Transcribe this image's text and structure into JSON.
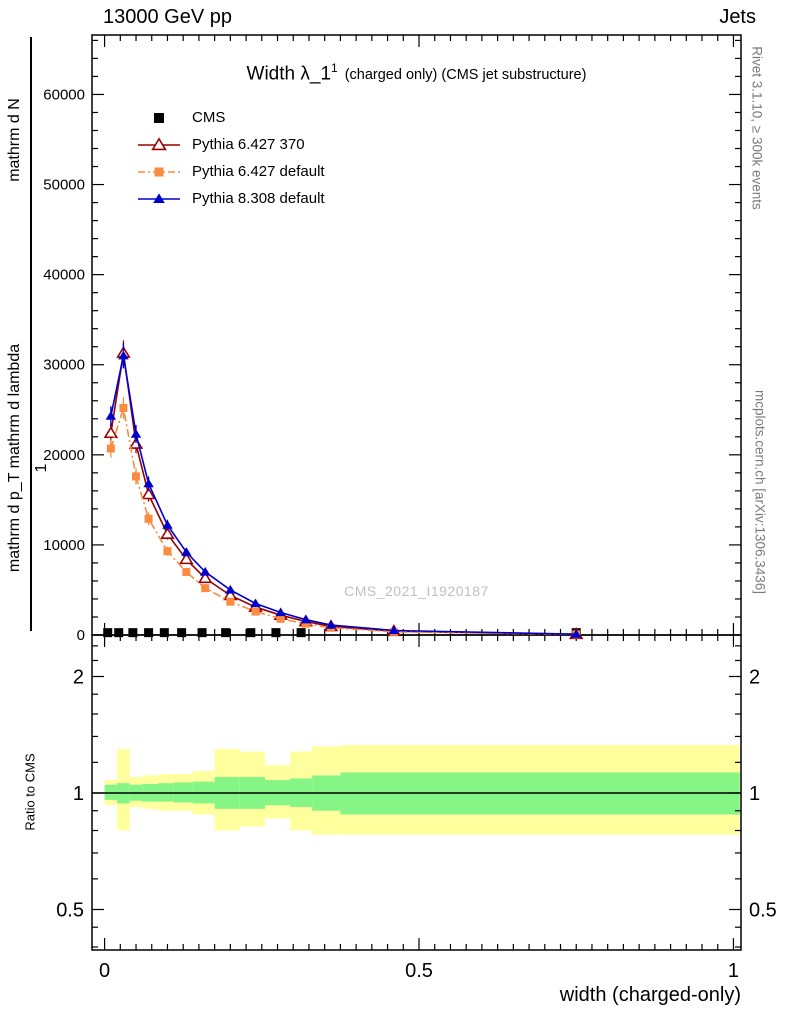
{
  "header": {
    "left": "13000 GeV pp",
    "right": "Jets"
  },
  "title": {
    "main": "Width λ_1",
    "sup": "1",
    "rest": "(charged only) (CMS jet substructure)"
  },
  "watermark": "CMS_2021_I1920187",
  "side_labels": {
    "rivet": "Rivet 3.1.10, ≥ 300k events",
    "mcplots": "mcplots.cern.ch [arXiv:1306.3436]"
  },
  "axis_labels": {
    "y_numerator": "mathrm d N",
    "y_denominator": "mathrm d p_T mathrm d lambda",
    "y_prefix": "1",
    "ratio": "Ratio to CMS",
    "x": "width (charged-only)"
  },
  "chart_data": {
    "type": "line",
    "title": "Width λ_1^1 (charged only) (CMS jet substructure)",
    "xlabel": "width (charged-only)",
    "ylabel": "mathrm d N / mathrm d p_T mathrm d lambda",
    "ratio_label": "Ratio to CMS",
    "xlim": [
      -0.02,
      1.012
    ],
    "ylim": [
      0,
      66600
    ],
    "ratio_ylim": [
      0.39,
      2.56
    ],
    "ratio_scale": "log",
    "grid": false,
    "legend_position": "top-left",
    "xticks": {
      "major": [
        0,
        0.5,
        1
      ],
      "labels": [
        "0",
        "0.5",
        "1"
      ],
      "minor_step": 0.025
    },
    "yticks": {
      "major": [
        0,
        10000,
        20000,
        30000,
        40000,
        50000,
        60000
      ],
      "minor_step": 2000
    },
    "ratio_yticks": {
      "major": [
        0.5,
        1,
        2
      ],
      "labels": [
        "0.5",
        "1",
        "2"
      ],
      "minor": [
        0.4,
        0.45,
        0.6,
        0.7,
        0.8,
        0.9,
        1.2,
        1.4,
        1.6,
        1.8,
        2.2,
        2.4
      ]
    },
    "band_colors": {
      "yellow": "#ffff9e",
      "green": "#85f585"
    },
    "ratio_line": 1,
    "series": [
      {
        "label": "CMS",
        "color": "#000000",
        "line": "none",
        "marker": "square-filled",
        "msize": 9,
        "x": [
          0.005,
          0.0225,
          0.045,
          0.07,
          0.095,
          0.1225,
          0.155,
          0.1925,
          0.2325,
          0.2725,
          0.3125,
          0.75
        ],
        "y": [
          260,
          260,
          260,
          260,
          260,
          260,
          260,
          260,
          260,
          260,
          260,
          260
        ]
      },
      {
        "label": "Pythia 6.427 370",
        "color": "#990000",
        "line": "solid",
        "marker": "triangle-open",
        "msize": 10,
        "x": [
          0.01,
          0.03,
          0.05,
          0.07,
          0.1,
          0.13,
          0.16,
          0.2,
          0.24,
          0.28,
          0.32,
          0.36,
          0.46,
          0.75
        ],
        "y": [
          22400,
          31300,
          21200,
          15600,
          11200,
          8400,
          6300,
          4400,
          3100,
          2200,
          1500,
          950,
          420,
          80
        ],
        "yerr": [
          1100,
          1400,
          1000,
          800,
          600,
          450,
          340,
          250,
          180,
          130,
          90,
          60,
          30,
          15
        ]
      },
      {
        "label": "Pythia 6.427 default",
        "color": "#fb8b40",
        "line": "dashdot",
        "marker": "square-filled",
        "msize": 8,
        "x": [
          0.01,
          0.03,
          0.05,
          0.07,
          0.1,
          0.13,
          0.16,
          0.2,
          0.24,
          0.28,
          0.32,
          0.36,
          0.46,
          0.75
        ],
        "y": [
          20700,
          25200,
          17600,
          12900,
          9300,
          7000,
          5200,
          3700,
          2600,
          1800,
          1250,
          800,
          350,
          70
        ],
        "yerr": [
          1000,
          1200,
          900,
          700,
          500,
          400,
          300,
          220,
          160,
          110,
          80,
          55,
          28,
          14
        ]
      },
      {
        "label": "Pythia 8.308 default",
        "color": "#0000cd",
        "line": "solid",
        "marker": "triangle-filled",
        "msize": 9,
        "x": [
          0.01,
          0.03,
          0.05,
          0.07,
          0.1,
          0.13,
          0.16,
          0.2,
          0.24,
          0.28,
          0.32,
          0.36,
          0.46,
          0.75
        ],
        "y": [
          24300,
          31000,
          22300,
          16800,
          12200,
          9200,
          7000,
          5000,
          3500,
          2500,
          1700,
          1100,
          500,
          90
        ],
        "yerr": [
          1100,
          1400,
          1000,
          800,
          600,
          460,
          350,
          260,
          190,
          140,
          95,
          65,
          32,
          16
        ]
      }
    ],
    "ratio_bands": [
      {
        "x0": 0.0,
        "x1": 0.02,
        "ylo": 0.93,
        "yhi": 1.08,
        "glo": 0.96,
        "ghi": 1.05
      },
      {
        "x0": 0.02,
        "x1": 0.04,
        "ylo": 0.8,
        "yhi": 1.3,
        "glo": 0.94,
        "ghi": 1.06
      },
      {
        "x0": 0.04,
        "x1": 0.06,
        "ylo": 0.92,
        "yhi": 1.1,
        "glo": 0.955,
        "ghi": 1.05
      },
      {
        "x0": 0.06,
        "x1": 0.085,
        "ylo": 0.91,
        "yhi": 1.11,
        "glo": 0.95,
        "ghi": 1.055
      },
      {
        "x0": 0.085,
        "x1": 0.11,
        "ylo": 0.9,
        "yhi": 1.12,
        "glo": 0.95,
        "ghi": 1.06
      },
      {
        "x0": 0.11,
        "x1": 0.14,
        "ylo": 0.9,
        "yhi": 1.12,
        "glo": 0.945,
        "ghi": 1.065
      },
      {
        "x0": 0.14,
        "x1": 0.175,
        "ylo": 0.88,
        "yhi": 1.14,
        "glo": 0.94,
        "ghi": 1.07
      },
      {
        "x0": 0.175,
        "x1": 0.215,
        "ylo": 0.8,
        "yhi": 1.3,
        "glo": 0.91,
        "ghi": 1.1
      },
      {
        "x0": 0.215,
        "x1": 0.255,
        "ylo": 0.82,
        "yhi": 1.28,
        "glo": 0.91,
        "ghi": 1.1
      },
      {
        "x0": 0.255,
        "x1": 0.295,
        "ylo": 0.86,
        "yhi": 1.18,
        "glo": 0.93,
        "ghi": 1.08
      },
      {
        "x0": 0.295,
        "x1": 0.33,
        "ylo": 0.8,
        "yhi": 1.28,
        "glo": 0.92,
        "ghi": 1.09
      },
      {
        "x0": 0.33,
        "x1": 0.375,
        "ylo": 0.78,
        "yhi": 1.32,
        "glo": 0.9,
        "ghi": 1.11
      },
      {
        "x0": 0.375,
        "x1": 1.01,
        "ylo": 0.78,
        "yhi": 1.33,
        "glo": 0.88,
        "ghi": 1.13
      }
    ]
  }
}
